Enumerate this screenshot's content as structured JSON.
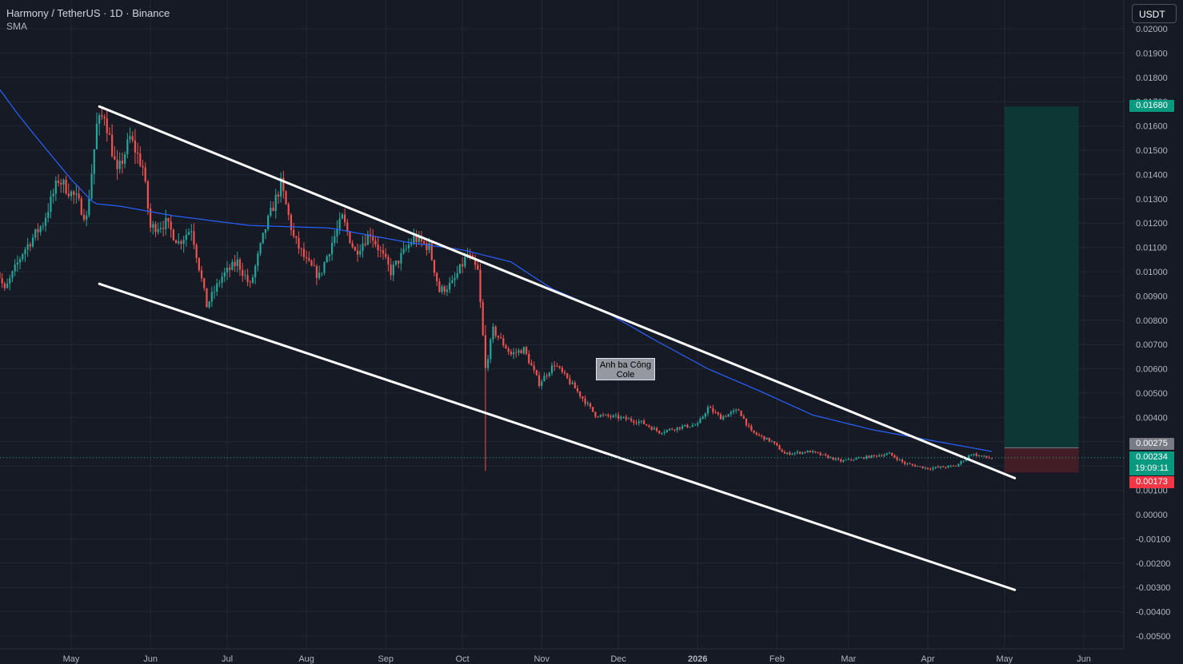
{
  "header": {
    "title": "Harmony / TetherUS · 1D · Binance",
    "indicator": "SMA",
    "currency": "USDT"
  },
  "annotation": {
    "line1": "Anh ba Công",
    "line2": "Cole"
  },
  "price_labels": {
    "target": "0.01680",
    "entry": "0.00275",
    "current": "0.00234",
    "countdown": "19:09:11",
    "stop": "0.00173"
  },
  "colors": {
    "background": "#161a25",
    "up": "#26a69a",
    "down": "#ef5350",
    "sma": "#2962ff",
    "trendline": "#ffffff",
    "target_zone": "#0b3d37",
    "stop_zone": "#4a1f26"
  },
  "chart_data": {
    "type": "candlestick",
    "title": "Harmony / TetherUS · 1D · Binance",
    "xlabel": "",
    "ylabel": "",
    "ylim": [
      -0.0055,
      0.0205
    ],
    "y_ticks": [
      "0.02000",
      "0.01900",
      "0.01800",
      "0.01700",
      "0.01600",
      "0.01500",
      "0.01400",
      "0.01300",
      "0.01200",
      "0.01100",
      "0.01000",
      "0.00900",
      "0.00800",
      "0.00700",
      "0.00600",
      "0.00500",
      "0.00400",
      "0.00300",
      "0.00200",
      "0.00100",
      "0.00000",
      "-0.00100",
      "-0.00200",
      "-0.00300",
      "-0.00400",
      "-0.00500"
    ],
    "x_ticks": [
      "May",
      "Jun",
      "Jul",
      "Aug",
      "Sep",
      "Oct",
      "Nov",
      "Dec",
      "2026",
      "Feb",
      "Mar",
      "Apr",
      "May",
      "Jun"
    ],
    "x_tick_dates": [
      "2025-05-01",
      "2025-06-01",
      "2025-07-01",
      "2025-08-01",
      "2025-09-01",
      "2025-10-01",
      "2025-11-01",
      "2025-12-01",
      "2026-01-01",
      "2026-02-01",
      "2026-03-01",
      "2026-04-01",
      "2026-05-01",
      "2026-06-01"
    ],
    "price_keypoints": [
      [
        "2025-04-01",
        0.0104
      ],
      [
        "2025-04-05",
        0.0092
      ],
      [
        "2025-04-12",
        0.0108
      ],
      [
        "2025-04-20",
        0.012
      ],
      [
        "2025-04-26",
        0.0138
      ],
      [
        "2025-05-03",
        0.013
      ],
      [
        "2025-05-07",
        0.0122
      ],
      [
        "2025-05-11",
        0.016
      ],
      [
        "2025-05-14",
        0.0165
      ],
      [
        "2025-05-19",
        0.014
      ],
      [
        "2025-05-24",
        0.0155
      ],
      [
        "2025-05-29",
        0.0143
      ],
      [
        "2025-06-01",
        0.0118
      ],
      [
        "2025-06-07",
        0.012
      ],
      [
        "2025-06-12",
        0.0112
      ],
      [
        "2025-06-17",
        0.0118
      ],
      [
        "2025-06-23",
        0.0086
      ],
      [
        "2025-06-29",
        0.0098
      ],
      [
        "2025-07-05",
        0.0104
      ],
      [
        "2025-07-10",
        0.0094
      ],
      [
        "2025-07-16",
        0.0118
      ],
      [
        "2025-07-22",
        0.0136
      ],
      [
        "2025-07-27",
        0.0114
      ],
      [
        "2025-08-01",
        0.0104
      ],
      [
        "2025-08-06",
        0.0098
      ],
      [
        "2025-08-11",
        0.0112
      ],
      [
        "2025-08-15",
        0.0122
      ],
      [
        "2025-08-20",
        0.0108
      ],
      [
        "2025-08-26",
        0.0116
      ],
      [
        "2025-09-03",
        0.01
      ],
      [
        "2025-09-12",
        0.0114
      ],
      [
        "2025-09-18",
        0.011
      ],
      [
        "2025-09-22",
        0.0092
      ],
      [
        "2025-09-27",
        0.0095
      ],
      [
        "2025-10-03",
        0.0107
      ],
      [
        "2025-10-07",
        0.01
      ],
      [
        "2025-10-10",
        0.006
      ],
      [
        "2025-10-13",
        0.0076
      ],
      [
        "2025-10-20",
        0.0066
      ],
      [
        "2025-10-25",
        0.0068
      ],
      [
        "2025-10-31",
        0.0054
      ],
      [
        "2025-11-06",
        0.0062
      ],
      [
        "2025-11-14",
        0.0052
      ],
      [
        "2025-11-22",
        0.0041
      ],
      [
        "2025-12-01",
        0.004
      ],
      [
        "2025-12-10",
        0.0038
      ],
      [
        "2025-12-17",
        0.0034
      ],
      [
        "2025-12-25",
        0.0036
      ],
      [
        "2026-01-01",
        0.0037
      ],
      [
        "2026-01-05",
        0.0044
      ],
      [
        "2026-01-10",
        0.004
      ],
      [
        "2026-01-17",
        0.0043
      ],
      [
        "2026-01-22",
        0.0034
      ],
      [
        "2026-01-30",
        0.003
      ],
      [
        "2026-02-04",
        0.0025
      ],
      [
        "2026-02-14",
        0.0026
      ],
      [
        "2026-02-26",
        0.0022
      ],
      [
        "2026-03-10",
        0.0024
      ],
      [
        "2026-03-17",
        0.0025
      ],
      [
        "2026-03-23",
        0.0021
      ],
      [
        "2026-04-01",
        0.0019
      ],
      [
        "2026-04-12",
        0.002
      ],
      [
        "2026-04-18",
        0.0025
      ],
      [
        "2026-04-26",
        0.0023
      ]
    ],
    "sma_keypoints": [
      [
        "2025-04-01",
        0.0178
      ],
      [
        "2025-04-10",
        0.0165
      ],
      [
        "2025-04-20",
        0.0152
      ],
      [
        "2025-05-01",
        0.0138
      ],
      [
        "2025-05-10",
        0.0128
      ],
      [
        "2025-05-20",
        0.0127
      ],
      [
        "2025-06-10",
        0.0123
      ],
      [
        "2025-07-10",
        0.0119
      ],
      [
        "2025-08-10",
        0.0118
      ],
      [
        "2025-09-10",
        0.0112
      ],
      [
        "2025-10-01",
        0.0109
      ],
      [
        "2025-10-20",
        0.0104
      ],
      [
        "2025-11-05",
        0.0093
      ],
      [
        "2025-11-25",
        0.0084
      ],
      [
        "2025-12-15",
        0.0072
      ],
      [
        "2026-01-05",
        0.006
      ],
      [
        "2026-01-25",
        0.0051
      ],
      [
        "2026-02-15",
        0.0041
      ],
      [
        "2026-03-10",
        0.0035
      ],
      [
        "2026-04-05",
        0.003
      ],
      [
        "2026-04-26",
        0.0026
      ]
    ],
    "wicks": [
      [
        "2025-10-10",
        0.0018,
        0.0078
      ]
    ],
    "trendlines": [
      {
        "from": [
          "2025-05-12",
          0.0168
        ],
        "to": [
          "2026-05-05",
          0.0015
        ]
      },
      {
        "from": [
          "2025-05-12",
          0.0095
        ],
        "to": [
          "2026-05-05",
          -0.0031
        ]
      }
    ],
    "position": {
      "from": "2026-05-01",
      "to": "2026-05-30",
      "entry": 0.00275,
      "target": 0.0168,
      "stop": 0.00173
    },
    "current_price": 0.00234
  }
}
